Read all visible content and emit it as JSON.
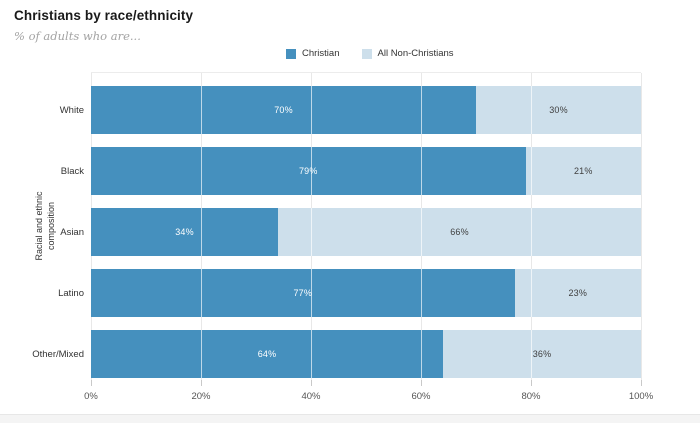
{
  "header": {
    "title": "Christians by race/ethnicity",
    "subtitle": "% of adults who are..."
  },
  "chart_data": {
    "type": "bar",
    "stacked": true,
    "orientation": "horizontal",
    "title": "Christians by race/ethnicity",
    "subtitle": "% of adults who are...",
    "categories": [
      "White",
      "Black",
      "Asian",
      "Latino",
      "Other/Mixed"
    ],
    "series": [
      {
        "name": "Christian",
        "color": "#4590be",
        "label_color": "#ffffff",
        "values": [
          70,
          79,
          34,
          77,
          64
        ]
      },
      {
        "name": "All Non-Christians",
        "color": "#cddfeb",
        "label_color": "#3f3f3f",
        "values": [
          30,
          21,
          66,
          23,
          36
        ]
      }
    ],
    "value_suffix": "%",
    "xlabel": "",
    "ylabel": "Racial and ethnic composition",
    "xlim": [
      0,
      100
    ],
    "xticks": [
      "0%",
      "20%",
      "40%",
      "60%",
      "80%",
      "100%"
    ],
    "grid": "vertical",
    "legend_position": "top-center"
  }
}
